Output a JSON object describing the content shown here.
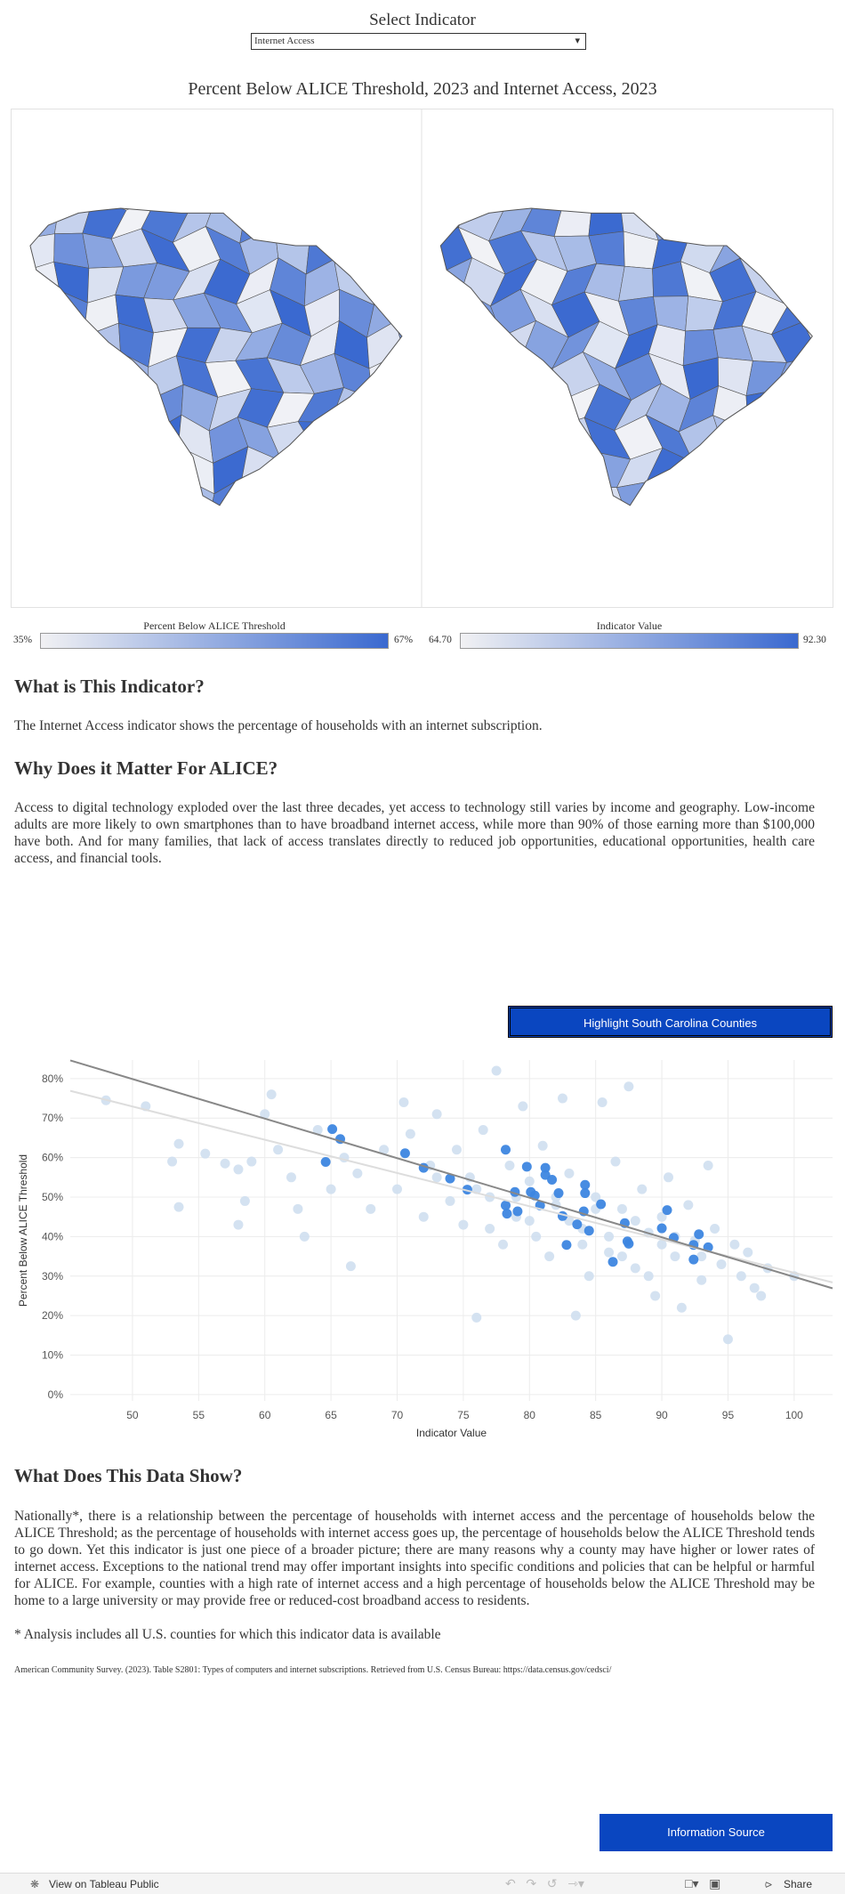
{
  "selector": {
    "label": "Select Indicator",
    "value": "Internet Access"
  },
  "maps": {
    "title": "Percent Below ALICE Threshold, 2023 and Internet Access, 2023",
    "legends": [
      {
        "title": "Percent Below ALICE Threshold",
        "min": "35%",
        "max": "67%"
      },
      {
        "title": "Indicator Value",
        "min": "64.70",
        "max": "92.30"
      }
    ]
  },
  "sections": [
    {
      "heading": "What is This Indicator?",
      "text": "The Internet Access indicator shows the percentage of households with an internet subscription."
    },
    {
      "heading": "Why Does it Matter For ALICE?",
      "text": "Access to digital technology exploded over the last three decades, yet access to technology still varies by income and geography. Low-income adults are more likely to own smartphones than to have broadband internet access, while more than 90% of those earning more than $100,000 have both. And for many families, that lack of access translates directly to reduced job opportunities, educational opportunities, health care access, and financial tools."
    }
  ],
  "highlight_button": "Highlight South Carolina Counties",
  "chart_data": {
    "type": "scatter",
    "x_label": "Indicator Value",
    "y_label": "Percent Below ALICE Threshold",
    "xlim": [
      45.3,
      102.9
    ],
    "ylim": [
      -1.6,
      84.7
    ],
    "grid": true,
    "xticks": [
      50,
      55,
      60,
      65,
      70,
      75,
      80,
      85,
      90,
      95,
      100
    ],
    "yticks": [
      {
        "value": 0,
        "label": "0%"
      },
      {
        "value": 10,
        "label": "10%"
      },
      {
        "value": 20,
        "label": "20%"
      },
      {
        "value": 30,
        "label": "30%"
      },
      {
        "value": 40,
        "label": "40%"
      },
      {
        "value": 50,
        "label": "50%"
      },
      {
        "value": 60,
        "label": "60%"
      },
      {
        "value": 70,
        "label": "70%"
      },
      {
        "value": 80,
        "label": "80%"
      }
    ],
    "series": [
      {
        "color": "#cfdff0",
        "x": [
          48,
          51,
          53,
          53.5,
          53.5,
          55.5,
          57,
          58,
          58.5,
          58,
          59,
          60,
          60.5,
          61,
          62,
          62.5,
          63,
          64,
          65,
          66,
          66.5,
          67,
          68,
          69,
          70,
          70.5,
          71,
          72,
          72.5,
          73,
          74,
          74.5,
          75,
          75.5,
          76,
          76.5,
          77,
          77.5,
          78,
          78.5,
          79,
          79.5,
          80,
          80.5,
          81,
          81.5,
          82,
          82.5,
          83,
          83.5,
          84,
          84.5,
          85,
          85.5,
          86,
          86.5,
          87,
          87.5,
          88,
          88.5,
          89,
          89.5,
          90,
          90.5,
          91,
          91.5,
          92,
          92.5,
          93,
          93.5,
          94,
          94.5,
          95,
          95.5,
          96,
          96.5,
          97,
          97.5,
          98,
          100,
          77,
          80,
          83,
          86,
          88,
          90,
          85,
          82,
          79,
          76,
          73,
          84,
          87,
          91,
          93,
          89
        ],
        "values": [
          74.5,
          73,
          59,
          63.5,
          47.5,
          61,
          58.5,
          57,
          49,
          43,
          59,
          71,
          76,
          62,
          55,
          47,
          40,
          67,
          52,
          60,
          32.5,
          56,
          47,
          62,
          52,
          74,
          66,
          45,
          58,
          71,
          49,
          62,
          43,
          55,
          19.5,
          67,
          50,
          82,
          38,
          58,
          45,
          73,
          54,
          40,
          63,
          35,
          48,
          75,
          56,
          20,
          42,
          30,
          50,
          74,
          36,
          59,
          47,
          78,
          32,
          52,
          41,
          25,
          45,
          55,
          35,
          22,
          48,
          39,
          29,
          58,
          42,
          33,
          14,
          38,
          30,
          36,
          27,
          25,
          32,
          30,
          42,
          44,
          44,
          40,
          44,
          38,
          47,
          50,
          50,
          52,
          55,
          38,
          35,
          40,
          35,
          30
        ]
      },
      {
        "color": "#3d86e0",
        "x": [
          65.1,
          65.7,
          64.6,
          70.6,
          72,
          74,
          75.3,
          78.2,
          79.8,
          81.2,
          81.2,
          81.7,
          78.9,
          80.1,
          80.4,
          82.2,
          84.2,
          84.2,
          85.4,
          80.8,
          78.2,
          78.3,
          79.1,
          82.5,
          84.1,
          84.5,
          83.6,
          82.8,
          87.2,
          87.4,
          87.5,
          86.3,
          90,
          90.4,
          90.9,
          92.8,
          92.4,
          93.5,
          92.4
        ],
        "values": [
          67.2,
          64.7,
          58.9,
          61.1,
          57.4,
          54.7,
          51.9,
          62,
          57.7,
          57.4,
          55.6,
          54.4,
          51.3,
          51.3,
          50.4,
          51,
          53.1,
          51,
          48.2,
          47.9,
          47.9,
          45.8,
          46.4,
          45.2,
          46.4,
          41.5,
          43.1,
          37.9,
          43.4,
          38.8,
          38.2,
          33.6,
          42.1,
          46.7,
          39.7,
          40.6,
          37.9,
          37.3,
          34.2
        ]
      }
    ],
    "trend_lines": [
      {
        "color": "#888888",
        "x": [
          45.3,
          102.9
        ],
        "y": [
          84.6,
          26.9
        ]
      },
      {
        "color": "#dddddd",
        "x": [
          45.3,
          102.9
        ],
        "y": [
          76.9,
          28.4
        ]
      }
    ]
  },
  "data_show": {
    "heading": "What Does This Data Show?",
    "text": "Nationally*, there is a relationship between the percentage of households with internet access and the percentage of households below the ALICE Threshold; as the percentage of households with internet access goes up, the percentage of households below the ALICE Threshold tends to go down. Yet this indicator is just one piece of a broader picture; there are many reasons why a county may have higher or lower rates of internet access. Exceptions to the national trend may offer important insights into specific conditions and policies that can be helpful or harmful for ALICE. For example, counties with a high rate of internet access and a high percentage of households below the ALICE Threshold may be home to a large university or may provide free or reduced-cost broadband access to residents.",
    "footnote": "* Analysis includes all U.S. counties for which this indicator data is available",
    "source": "American Community Survey. (2023). Table S2801: Types of computers and internet subscriptions. Retrieved from U.S. Census Bureau: https://data.census.gov/cedsci/"
  },
  "info_button": "Information Source",
  "toolbar": {
    "view": "View on Tableau Public",
    "share": "Share"
  }
}
